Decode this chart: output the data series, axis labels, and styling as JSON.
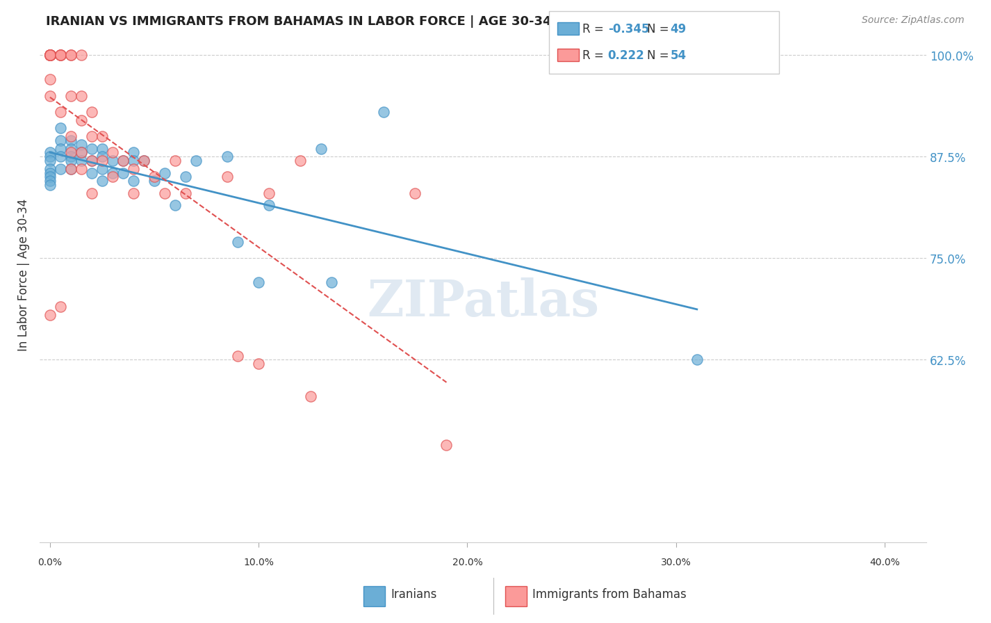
{
  "title": "IRANIAN VS IMMIGRANTS FROM BAHAMAS IN LABOR FORCE | AGE 30-34 CORRELATION CHART",
  "source": "Source: ZipAtlas.com",
  "ylabel": "In Labor Force | Age 30-34",
  "ylim": [
    0.4,
    1.06
  ],
  "xlim": [
    -0.005,
    0.42
  ],
  "yticks": [
    0.625,
    0.75,
    0.875,
    1.0
  ],
  "ytick_labels": [
    "62.5%",
    "75.0%",
    "87.5%",
    "100.0%"
  ],
  "background_color": "#ffffff",
  "watermark": "ZIPatlas",
  "legend_r_blue": "-0.345",
  "legend_n_blue": "49",
  "legend_r_pink": "0.222",
  "legend_n_pink": "54",
  "blue_color": "#6baed6",
  "pink_color": "#fb9a99",
  "blue_line_color": "#4292c6",
  "pink_edge_color": "#e05050",
  "iranians_x": [
    0.0,
    0.0,
    0.0,
    0.0,
    0.0,
    0.0,
    0.0,
    0.0,
    0.005,
    0.005,
    0.005,
    0.005,
    0.005,
    0.01,
    0.01,
    0.01,
    0.01,
    0.01,
    0.015,
    0.015,
    0.015,
    0.02,
    0.02,
    0.02,
    0.025,
    0.025,
    0.025,
    0.025,
    0.03,
    0.03,
    0.035,
    0.035,
    0.04,
    0.04,
    0.04,
    0.045,
    0.05,
    0.055,
    0.06,
    0.065,
    0.07,
    0.085,
    0.09,
    0.1,
    0.105,
    0.13,
    0.135,
    0.16,
    0.31
  ],
  "iranians_y": [
    0.88,
    0.875,
    0.87,
    0.86,
    0.855,
    0.85,
    0.845,
    0.84,
    0.91,
    0.895,
    0.885,
    0.875,
    0.86,
    0.895,
    0.885,
    0.875,
    0.87,
    0.86,
    0.89,
    0.88,
    0.87,
    0.885,
    0.87,
    0.855,
    0.885,
    0.875,
    0.86,
    0.845,
    0.87,
    0.855,
    0.87,
    0.855,
    0.88,
    0.87,
    0.845,
    0.87,
    0.845,
    0.855,
    0.815,
    0.85,
    0.87,
    0.875,
    0.77,
    0.72,
    0.815,
    0.885,
    0.72,
    0.93,
    0.625
  ],
  "bahamas_x": [
    0.0,
    0.0,
    0.0,
    0.0,
    0.0,
    0.0,
    0.0,
    0.0,
    0.0,
    0.0,
    0.0,
    0.0,
    0.0,
    0.005,
    0.005,
    0.005,
    0.005,
    0.005,
    0.005,
    0.01,
    0.01,
    0.01,
    0.01,
    0.01,
    0.01,
    0.015,
    0.015,
    0.015,
    0.015,
    0.015,
    0.02,
    0.02,
    0.02,
    0.02,
    0.025,
    0.025,
    0.03,
    0.03,
    0.035,
    0.04,
    0.04,
    0.045,
    0.05,
    0.055,
    0.06,
    0.065,
    0.085,
    0.09,
    0.1,
    0.105,
    0.12,
    0.125,
    0.175,
    0.19
  ],
  "bahamas_y": [
    1.0,
    1.0,
    1.0,
    1.0,
    1.0,
    1.0,
    1.0,
    1.0,
    1.0,
    1.0,
    0.97,
    0.95,
    0.68,
    1.0,
    1.0,
    1.0,
    1.0,
    0.93,
    0.69,
    1.0,
    1.0,
    0.95,
    0.9,
    0.88,
    0.86,
    1.0,
    0.95,
    0.92,
    0.88,
    0.86,
    0.93,
    0.9,
    0.87,
    0.83,
    0.9,
    0.87,
    0.88,
    0.85,
    0.87,
    0.86,
    0.83,
    0.87,
    0.85,
    0.83,
    0.87,
    0.83,
    0.85,
    0.63,
    0.62,
    0.83,
    0.87,
    0.58,
    0.83,
    0.52
  ]
}
